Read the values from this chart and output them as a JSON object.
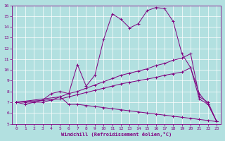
{
  "xlabel": "Windchill (Refroidissement éolien,°C)",
  "background_color": "#b2e0e0",
  "line_color": "#800080",
  "xlim": [
    -0.5,
    23.5
  ],
  "ylim": [
    5,
    16
  ],
  "xticks": [
    0,
    1,
    2,
    3,
    4,
    5,
    6,
    7,
    8,
    9,
    10,
    11,
    12,
    13,
    14,
    15,
    16,
    17,
    18,
    19,
    20,
    21,
    22,
    23
  ],
  "yticks": [
    5,
    6,
    7,
    8,
    9,
    10,
    11,
    12,
    13,
    14,
    15,
    16
  ],
  "series": [
    {
      "x": [
        0,
        1,
        2,
        3,
        4,
        5,
        6,
        7,
        8,
        9,
        10,
        11,
        12,
        13,
        14,
        15,
        16,
        17,
        18,
        19,
        20,
        21,
        22,
        23
      ],
      "y": [
        7,
        6.8,
        7,
        7.2,
        7.8,
        8.0,
        7.8,
        10.5,
        8.5,
        9.5,
        12.8,
        15.2,
        14.7,
        13.9,
        14.3,
        15.5,
        15.8,
        15.7,
        14.5,
        11.5,
        10.2,
        7.8,
        6.8,
        5.2
      ]
    },
    {
      "x": [
        0,
        5,
        6,
        7,
        8,
        9,
        10,
        11,
        12,
        13,
        14,
        15,
        16,
        17,
        18,
        19,
        20,
        21,
        22,
        23
      ],
      "y": [
        7,
        7.5,
        7.8,
        8.0,
        8.3,
        8.6,
        8.9,
        9.2,
        9.5,
        9.7,
        9.9,
        10.1,
        10.4,
        10.6,
        10.9,
        11.1,
        11.5,
        7.5,
        7.0,
        5.2
      ]
    },
    {
      "x": [
        0,
        5,
        6,
        7,
        8,
        9,
        10,
        11,
        12,
        13,
        14,
        15,
        16,
        17,
        18,
        19,
        20,
        21,
        22,
        23
      ],
      "y": [
        7,
        7.3,
        7.5,
        7.7,
        7.9,
        8.1,
        8.3,
        8.5,
        8.7,
        8.85,
        9.0,
        9.15,
        9.3,
        9.5,
        9.65,
        9.8,
        10.2,
        7.3,
        6.8,
        5.2
      ]
    },
    {
      "x": [
        0,
        1,
        2,
        3,
        4,
        5,
        6,
        7,
        8,
        9,
        10,
        11,
        12,
        13,
        14,
        15,
        16,
        17,
        18,
        19,
        20,
        21,
        22,
        23
      ],
      "y": [
        7,
        7,
        7,
        7,
        7.2,
        7.5,
        6.8,
        6.8,
        6.7,
        6.6,
        6.5,
        6.4,
        6.3,
        6.2,
        6.1,
        6.0,
        5.9,
        5.8,
        5.7,
        5.6,
        5.5,
        5.4,
        5.3,
        5.2
      ]
    }
  ]
}
